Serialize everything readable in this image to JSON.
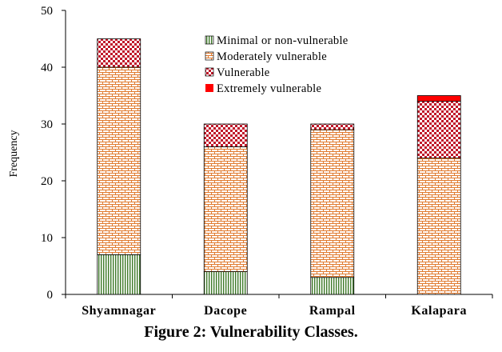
{
  "chart_data": {
    "type": "bar",
    "stacked": true,
    "categories": [
      "Shyamnagar",
      "Dacope",
      "Rampal",
      "Kalapara"
    ],
    "series": [
      {
        "name": "Minimal or non-vulnerable",
        "values": [
          7,
          4,
          3,
          0
        ],
        "pattern": "vertical-lines",
        "color": "#3f7a2a"
      },
      {
        "name": "Moderately vulnerable",
        "values": [
          33,
          22,
          26,
          24
        ],
        "pattern": "brick",
        "color": "#e07a2e"
      },
      {
        "name": "Vulnerable",
        "values": [
          5,
          4,
          1,
          10
        ],
        "pattern": "checker",
        "color": "#c0182a"
      },
      {
        "name": "Extremely vulnerable",
        "values": [
          0,
          0,
          0,
          1
        ],
        "pattern": "solid",
        "color": "#ff0000"
      }
    ],
    "ylabel": "Frequency",
    "xlabel": "",
    "ylim": [
      0,
      50
    ],
    "yticks": [
      "0",
      "10",
      "20",
      "30",
      "40",
      "50"
    ],
    "grid": false,
    "legend_position": "top-center"
  },
  "caption": "Figure 2: Vulnerability Classes."
}
